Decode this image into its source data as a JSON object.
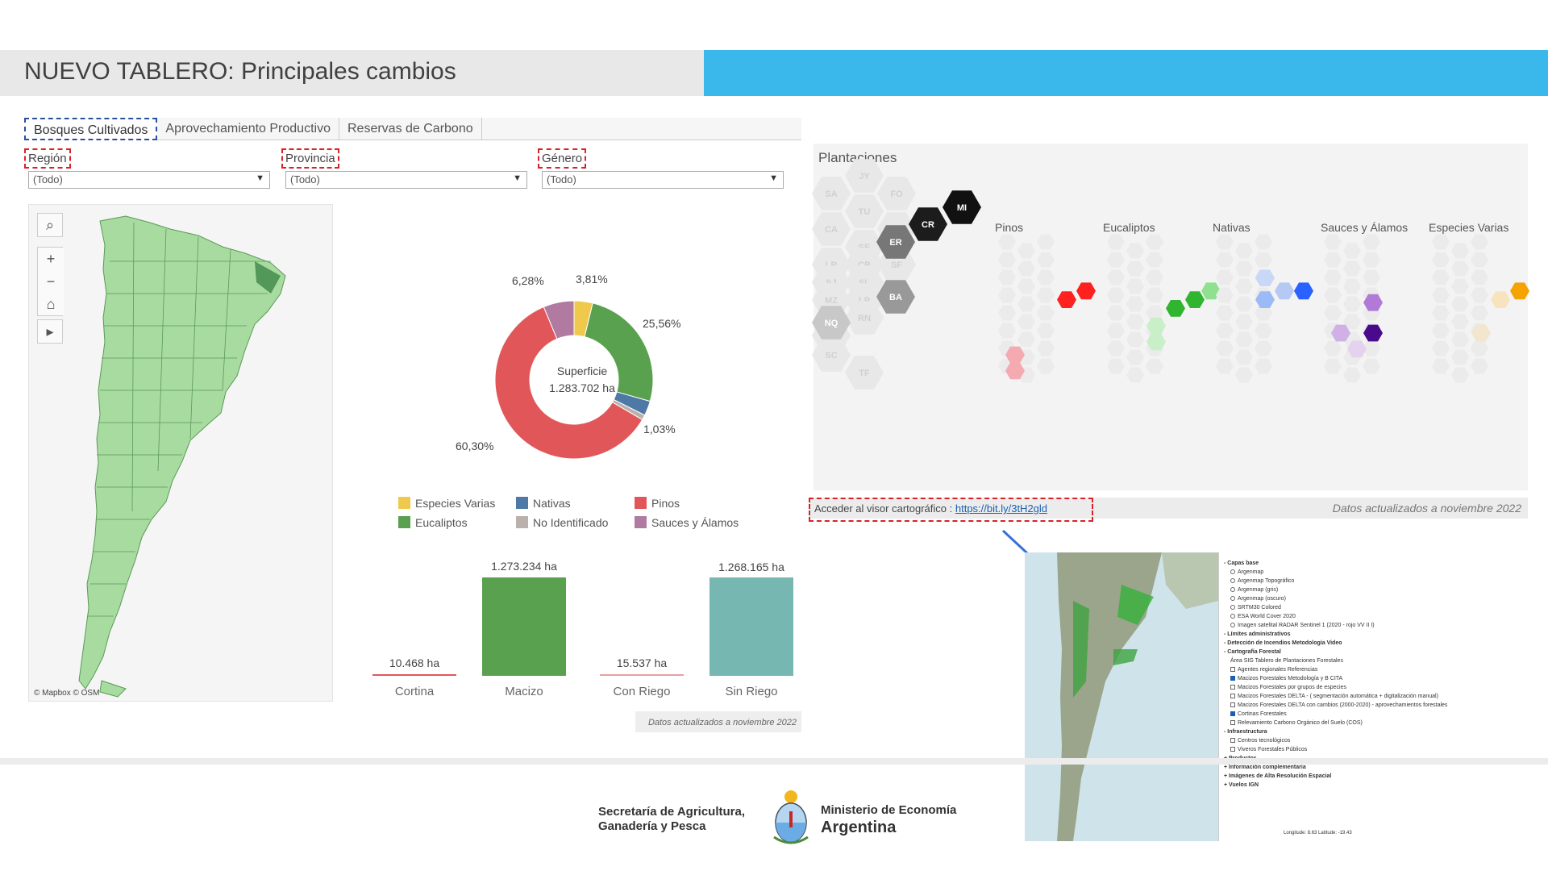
{
  "header": {
    "title": "NUEVO TABLERO: Principales cambios"
  },
  "tabs": [
    {
      "label": "Bosques Cultivados",
      "active": true
    },
    {
      "label": "Aprovechamiento Productivo",
      "active": false
    },
    {
      "label": "Reservas de Carbono",
      "active": false
    }
  ],
  "filters": {
    "region": {
      "label": "Región",
      "value": "(Todo)"
    },
    "provincia": {
      "label": "Provincia",
      "value": "(Todo)"
    },
    "genero": {
      "label": "Género",
      "value": "(Todo)"
    }
  },
  "map": {
    "credit": "© Mapbox  © OSM"
  },
  "chart_data": [
    {
      "type": "pie",
      "title": "",
      "center_label": "Superficie",
      "center_value": "1.283.702 ha",
      "slices": [
        {
          "name": "Especies Varias",
          "label": "3,81%",
          "value": 3.81,
          "color": "#efc94c"
        },
        {
          "name": "Eucaliptos",
          "label": "25,56%",
          "value": 25.56,
          "color": "#59a14f"
        },
        {
          "name": "Nativas",
          "label": "",
          "value": 3.0,
          "color": "#4e79a7"
        },
        {
          "name": "No Identificado",
          "label": "1,03%",
          "value": 1.03,
          "color": "#bab0ac"
        },
        {
          "name": "Pinos",
          "label": "60,30%",
          "value": 60.3,
          "color": "#e15759"
        },
        {
          "name": "Sauces y Álamos",
          "label": "6,28%",
          "value": 6.28,
          "color": "#b07aa1"
        }
      ]
    },
    {
      "type": "bar",
      "title": "",
      "categories": [
        "Cortina",
        "Macizo",
        "Con Riego",
        "Sin Riego"
      ],
      "values": [
        10468,
        1273234,
        15537,
        1268165
      ],
      "value_labels": [
        "10.468 ha",
        "1.273.234 ha",
        "15.537 ha",
        "1.268.165 ha"
      ],
      "colors": [
        "#e15759",
        "#59a14f",
        "#e8a0a0",
        "#76b7b2"
      ],
      "ylim": [
        0,
        1273234
      ]
    }
  ],
  "legend": [
    {
      "label": "Especies Varias",
      "color": "#efc94c"
    },
    {
      "label": "Nativas",
      "color": "#4e79a7"
    },
    {
      "label": "Pinos",
      "color": "#e15759"
    },
    {
      "label": "Eucaliptos",
      "color": "#59a14f"
    },
    {
      "label": "No Identificado",
      "color": "#bab0ac"
    },
    {
      "label": "Sauces y Álamos",
      "color": "#b07aa1"
    }
  ],
  "left_note": "Datos actualizados a noviembre 2022",
  "plantaciones": {
    "title": "Plantaciones",
    "species": [
      "Pinos",
      "Eucaliptos",
      "Nativas",
      "Sauces y Álamos",
      "Especies Varias"
    ],
    "provinces_highlight": [
      "MI",
      "CR",
      "ER",
      "BA",
      "NQ"
    ],
    "provinces_faded": [
      "JY",
      "SA",
      "FO",
      "TU",
      "CA",
      "CH",
      "SE",
      "LR",
      "CB",
      "SF",
      "SJ",
      "SL",
      "MZ",
      "LP",
      "RN",
      "CT",
      "SC",
      "TF"
    ]
  },
  "link": {
    "text": "Acceder al visor cartográfico :",
    "url": "https://bit.ly/3tH2gld",
    "note": "Datos actualizados a noviembre 2022"
  },
  "viewer": {
    "sections": [
      {
        "head": "- Capas base",
        "items": [
          {
            "type": "radio",
            "label": "Argenmap"
          },
          {
            "type": "radio",
            "label": "Argenmap Topográfico"
          },
          {
            "type": "radio",
            "label": "Argenmap (gris)"
          },
          {
            "type": "radio",
            "label": "Argenmap (oscuro)"
          },
          {
            "type": "radio",
            "label": "SRTM30 Colored"
          },
          {
            "type": "radio",
            "label": "ESA World Cover 2020"
          },
          {
            "type": "radio",
            "label": "Imagen satelital RADAR Sentinel 1 (2020 - rojo VV II I)"
          }
        ]
      },
      {
        "head": "- Límites administrativos",
        "items": []
      },
      {
        "head": "- Detección de Incendios  Metodología  Video",
        "items": []
      },
      {
        "head": "- Cartografía Forestal",
        "items": [
          {
            "type": "text",
            "label": "Área SIG Tablero de Plantaciones Forestales"
          },
          {
            "type": "check",
            "label": "Agentes regionales Referencias",
            "on": false
          },
          {
            "type": "check",
            "label": "Macizos Forestales Metodología y B CITA",
            "on": true
          },
          {
            "type": "check",
            "label": "Macizos Forestales por grupos de especies",
            "on": false
          },
          {
            "type": "check",
            "label": "Macizos Forestales DELTA - ( segmentación automática + digitalización manual)",
            "on": false
          },
          {
            "type": "check",
            "label": "Macizos Forestales DELTA con cambios (2000-2020) - aprovechamientos forestales",
            "on": false
          },
          {
            "type": "check",
            "label": "Cortinas Forestales",
            "on": true
          },
          {
            "type": "check",
            "label": "Relevamiento Carbono Orgánico del Suelo (COS)",
            "on": false
          }
        ]
      },
      {
        "head": "- Infraestructura",
        "items": [
          {
            "type": "check",
            "label": "Centros tecnológicos",
            "on": false
          },
          {
            "type": "check",
            "label": "Viveros Forestales Públicos",
            "on": false
          }
        ]
      },
      {
        "head": "+ Productos",
        "items": []
      },
      {
        "head": "+ Información complementaria",
        "items": []
      },
      {
        "head": "+ Imágenes de Alta Resolución Espacial",
        "items": []
      },
      {
        "head": "+ Vuelos IGN",
        "items": []
      }
    ],
    "coords": "Longitude: 8.63  Latitude: -19.43"
  },
  "footer": {
    "secretaria": [
      "Secretaría de Agricultura,",
      "Ganadería y Pesca"
    ],
    "ministerio": "Ministerio de Economía",
    "pais": "Argentina"
  }
}
